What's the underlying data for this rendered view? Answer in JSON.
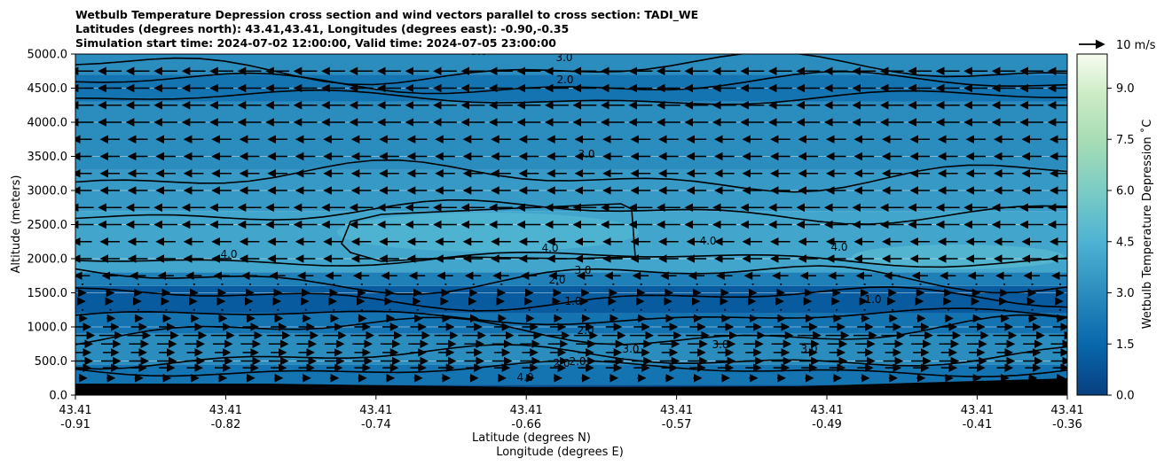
{
  "title_lines": [
    "Wetbulb Temperature Depression cross section and wind vectors parallel to cross section: TADI_WE",
    "Latitudes (degrees north): 43.41,43.41, Longitudes (degrees east): -0.90,-0.35",
    "Simulation start time: 2024-07-02 12:00:00, Valid time: 2024-07-05 23:00:00"
  ],
  "chart_data": {
    "type": "heatmap",
    "ylabel": "Altitude (meters)",
    "xlabel_lines": [
      "Latitude (degrees N)",
      "Longitude (degrees E)"
    ],
    "colorbar_label": "Wetbulb Temperature Depression ˚C",
    "ylim": [
      0,
      5000
    ],
    "y_ticks": [
      "0.0",
      "500.0",
      "1000.0",
      "1500.0",
      "2000.0",
      "2500.0",
      "3000.0",
      "3500.0",
      "4000.0",
      "4500.0",
      "5000.0"
    ],
    "x_ticks": [
      {
        "lat": "43.41",
        "lon": "-0.91"
      },
      {
        "lat": "43.41",
        "lon": "-0.82"
      },
      {
        "lat": "43.41",
        "lon": "-0.74"
      },
      {
        "lat": "43.41",
        "lon": "-0.66"
      },
      {
        "lat": "43.41",
        "lon": "-0.57"
      },
      {
        "lat": "43.41",
        "lon": "-0.49"
      },
      {
        "lat": "43.41",
        "lon": "-0.41"
      },
      {
        "lat": "43.41",
        "lon": "-0.36"
      }
    ],
    "colorbar_range": [
      0,
      10
    ],
    "colorbar_ticks": [
      "0.0",
      "1.5",
      "3.0",
      "4.5",
      "6.0",
      "7.5",
      "9.0"
    ],
    "wind_key_label": "10 m/s",
    "layers": [
      {
        "alt_low": 0,
        "alt_high": 150,
        "value": 0.5
      },
      {
        "alt_low": 150,
        "alt_high": 450,
        "value": 2.0
      },
      {
        "alt_low": 450,
        "alt_high": 900,
        "value": 3.0
      },
      {
        "alt_low": 900,
        "alt_high": 1200,
        "value": 2.0
      },
      {
        "alt_low": 1200,
        "alt_high": 1600,
        "value": 1.0
      },
      {
        "alt_low": 1600,
        "alt_high": 1800,
        "value": 2.5
      },
      {
        "alt_low": 1800,
        "alt_high": 2700,
        "value": 4.0
      },
      {
        "alt_low": 2700,
        "alt_high": 3300,
        "value": 3.5
      },
      {
        "alt_low": 3300,
        "alt_high": 4300,
        "value": 3.0
      },
      {
        "alt_low": 4300,
        "alt_high": 4700,
        "value": 2.0
      },
      {
        "alt_low": 4700,
        "alt_high": 5000,
        "value": 3.0
      }
    ],
    "contour_labels": [
      "3.0",
      "2.0",
      "3.0",
      "4.0",
      "4.0",
      "4.0",
      "4.0",
      "3.0",
      "2.0",
      "1.0",
      "2.0",
      "2.0",
      "2.0",
      "3.0",
      "3.0",
      "3.0",
      "1.0",
      "4.0",
      "3.0"
    ],
    "wind_rows": [
      {
        "alt": 250,
        "u": 2
      },
      {
        "alt": 400,
        "u": 4
      },
      {
        "alt": 500,
        "u": 5
      },
      {
        "alt": 625,
        "u": 4
      },
      {
        "alt": 750,
        "u": 5
      },
      {
        "alt": 875,
        "u": 6
      },
      {
        "alt": 1000,
        "u": 4
      },
      {
        "alt": 1125,
        "u": 2
      },
      {
        "alt": 1250,
        "u": 0.5
      },
      {
        "alt": 1375,
        "u": 1
      },
      {
        "alt": 1500,
        "u": 1.5
      },
      {
        "alt": 1625,
        "u": 0.5
      },
      {
        "alt": 1750,
        "u": -4
      },
      {
        "alt": 2000,
        "u": -5
      },
      {
        "alt": 2250,
        "u": -5
      },
      {
        "alt": 2500,
        "u": -6
      },
      {
        "alt": 2750,
        "u": -6
      },
      {
        "alt": 3000,
        "u": -5
      },
      {
        "alt": 3250,
        "u": -5
      },
      {
        "alt": 3500,
        "u": -5
      },
      {
        "alt": 3750,
        "u": -5
      },
      {
        "alt": 4000,
        "u": -6
      },
      {
        "alt": 4250,
        "u": -6
      },
      {
        "alt": 4500,
        "u": -6
      },
      {
        "alt": 4750,
        "u": -6
      }
    ]
  }
}
